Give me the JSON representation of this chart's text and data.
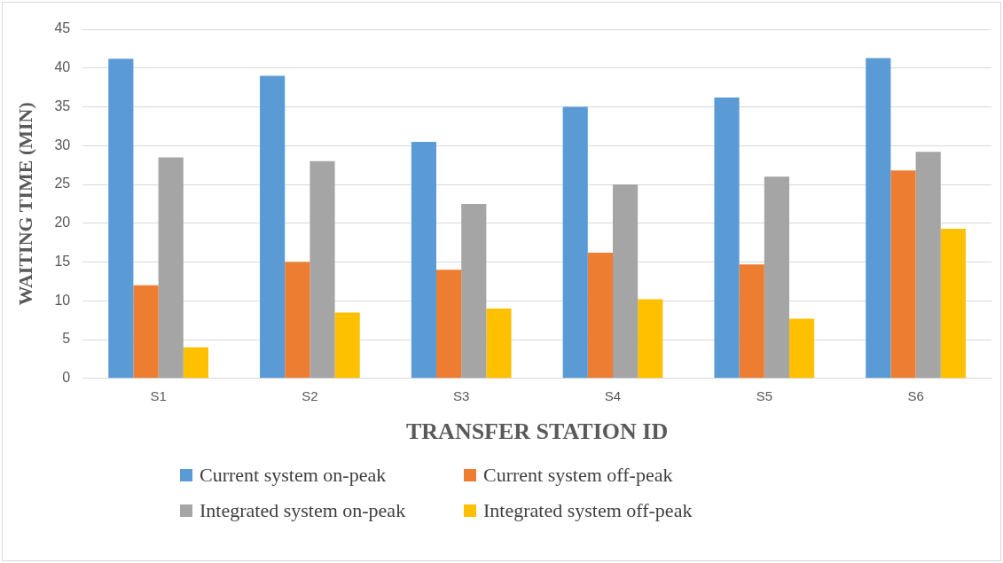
{
  "chart_data": {
    "type": "bar",
    "xlabel": "TRANSFER STATION ID",
    "ylabel": "WAITING TIME (MIN)",
    "categories": [
      "S1",
      "S2",
      "S3",
      "S4",
      "S5",
      "S6"
    ],
    "series": [
      {
        "name": "Current system on-peak",
        "color": "#5b9bd5",
        "values": [
          41.2,
          39,
          30.5,
          35,
          36.2,
          41.3
        ]
      },
      {
        "name": "Current system off-peak",
        "color": "#ed7d31",
        "values": [
          12,
          15,
          14,
          16.2,
          14.7,
          26.8
        ]
      },
      {
        "name": "Integrated system on-peak",
        "color": "#a5a5a5",
        "values": [
          28.5,
          28,
          22.5,
          25,
          26,
          29.2
        ]
      },
      {
        "name": "Integrated system off-peak",
        "color": "#ffc000",
        "values": [
          4,
          8.5,
          9,
          10.2,
          7.7,
          19.3
        ]
      }
    ],
    "ylim": [
      0,
      45
    ],
    "yticks": [
      0,
      5,
      10,
      15,
      20,
      25,
      30,
      35,
      40,
      45
    ],
    "grid": "y",
    "legend": "bottom"
  }
}
